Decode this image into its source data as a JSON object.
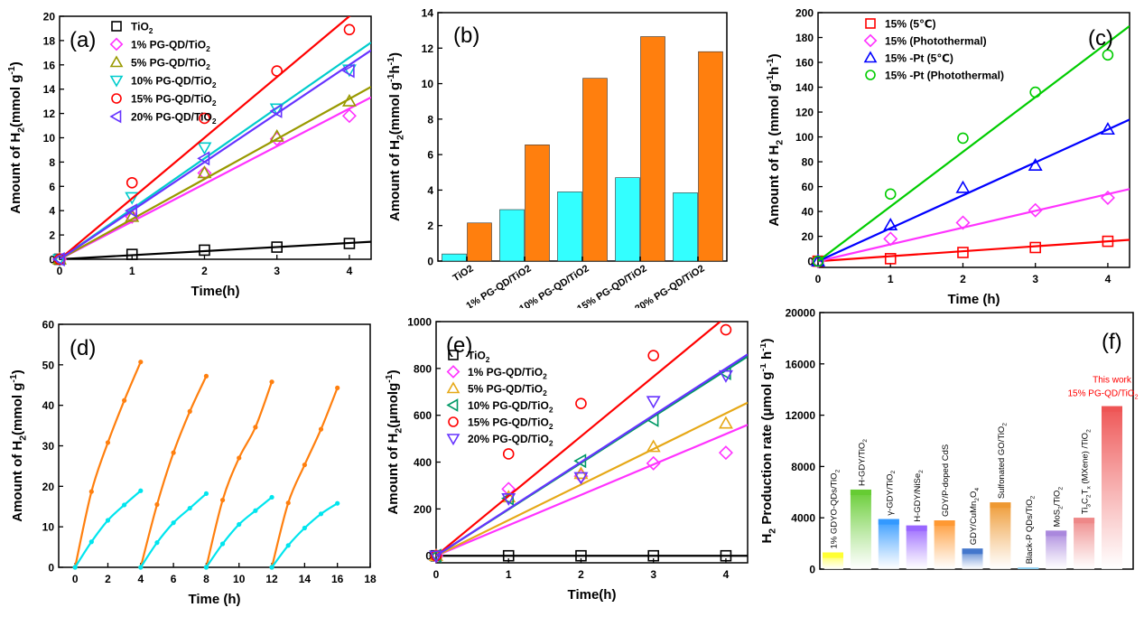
{
  "chart_data": [
    {
      "panel_label": "(a)",
      "type": "scatter",
      "xlabel": "Time(h)",
      "ylabel": "Amount of H2(mmol g-1)",
      "ylabel_parts": {
        "main": "Amount of H",
        "sub": "2",
        "mid": "(mmol g",
        "sup": "-1",
        "end": ")"
      },
      "xlim": [
        0,
        4.3
      ],
      "ylim": [
        0,
        20
      ],
      "xticks": [
        0,
        1,
        2,
        3,
        4
      ],
      "yticks": [
        0,
        2,
        4,
        6,
        8,
        10,
        12,
        14,
        16,
        18,
        20
      ],
      "legend_position": "top-left",
      "series": [
        {
          "name": "TiO2",
          "legend": {
            "main": "TiO",
            "sub": "2",
            "tail": ""
          },
          "marker": "square",
          "color": "#000000",
          "x": [
            0,
            1,
            2,
            3,
            4
          ],
          "y": [
            0,
            0.4,
            0.75,
            1.0,
            1.3
          ],
          "fit_slope": 0.335
        },
        {
          "name": "1% PG-QD/TiO2",
          "legend": {
            "main": "1% PG-QD/TiO",
            "sub": "2",
            "tail": ""
          },
          "marker": "diamond",
          "color": "#ff33ff",
          "x": [
            0,
            1,
            2,
            3,
            4
          ],
          "y": [
            0,
            3.5,
            7.1,
            9.9,
            11.8
          ],
          "fit_slope": 3.1
        },
        {
          "name": "5% PG-QD/TiO2",
          "legend": {
            "main": "5% PG-QD/TiO",
            "sub": "2",
            "tail": ""
          },
          "marker": "triangle-up",
          "color": "#999900",
          "x": [
            0,
            1,
            2,
            3,
            4
          ],
          "y": [
            0,
            3.5,
            7.1,
            10.1,
            13.0
          ],
          "fit_slope": 3.3
        },
        {
          "name": "10% PG-QD/TiO2",
          "legend": {
            "main": "10% PG-QD/TiO",
            "sub": "2",
            "tail": ""
          },
          "marker": "triangle-down",
          "color": "#00cccc",
          "x": [
            0,
            1,
            2,
            3,
            4
          ],
          "y": [
            0,
            5.1,
            9.2,
            12.4,
            15.6
          ],
          "fit_slope": 4.15
        },
        {
          "name": "15% PG-QD/TiO2",
          "legend": {
            "main": "15% PG-QD/TiO",
            "sub": "2",
            "tail": ""
          },
          "marker": "circle",
          "color": "#ff0000",
          "x": [
            0,
            1,
            2,
            3,
            4
          ],
          "y": [
            0,
            6.3,
            11.6,
            15.5,
            18.9
          ],
          "fit_slope": 5.0
        },
        {
          "name": "20% PG-QD/TiO2",
          "legend": {
            "main": "20% PG-QD/TiO",
            "sub": "2",
            "tail": ""
          },
          "marker": "triangle-left",
          "color": "#6633ff",
          "x": [
            0,
            1,
            2,
            3,
            4
          ],
          "y": [
            0,
            4.0,
            8.3,
            12.2,
            15.5
          ],
          "fit_slope": 4.0
        }
      ]
    },
    {
      "panel_label": "(b)",
      "type": "bar",
      "ylabel": "Amount of H2(mmol g-1h-1)",
      "ylabel_parts": {
        "main": "Amount of H",
        "sub": "2",
        "mid": "(mmol g",
        "sup": "-1",
        "mid2": "h",
        "sup2": "-1",
        "end": ")"
      },
      "ylim": [
        0,
        14
      ],
      "yticks": [
        0,
        2,
        4,
        6,
        8,
        10,
        12,
        14
      ],
      "categories": [
        "TiO2",
        "1% PG-QD/TiO2",
        "10% PG-QD/TiO2",
        "15% PG-QD/TiO2",
        "20% PG-QD/TiO2"
      ],
      "series": [
        {
          "color": "#33ffff",
          "values": [
            0.4,
            2.9,
            3.9,
            4.7,
            3.85
          ]
        },
        {
          "color": "#ff7f0e",
          "values": [
            2.15,
            6.55,
            10.3,
            12.65,
            11.8
          ]
        }
      ]
    },
    {
      "panel_label": "(c)",
      "type": "scatter",
      "xlabel": "Time (h)",
      "ylabel": "Amount of H2 (mmol g-1h-1)",
      "ylabel_parts": {
        "main": "Amount of H",
        "sub": "2",
        "mid": " (mmol g",
        "sup": "-1",
        "mid2": "h",
        "sup2": "-1",
        "end": ")"
      },
      "xlim": [
        0,
        4.3
      ],
      "ylim": [
        -5,
        200
      ],
      "xticks": [
        0,
        1,
        2,
        3,
        4
      ],
      "yticks": [
        0,
        20,
        40,
        60,
        80,
        100,
        120,
        140,
        160,
        180,
        200
      ],
      "legend_position": "top-left",
      "series": [
        {
          "name": "15% (5℃)",
          "legend": {
            "main": "15% (5℃)",
            "sub": "",
            "tail": ""
          },
          "marker": "square",
          "color": "#ff0000",
          "x": [
            0,
            1,
            2,
            3,
            4
          ],
          "y": [
            0,
            2,
            7,
            11,
            16
          ],
          "fit_slope": 4.0
        },
        {
          "name": "15% (Photothermal)",
          "legend": {
            "main": "15% (Photothermal)",
            "sub": "",
            "tail": ""
          },
          "marker": "diamond",
          "color": "#ff33ff",
          "x": [
            0,
            1,
            2,
            3,
            4
          ],
          "y": [
            0,
            18,
            31,
            41,
            51
          ],
          "fit_slope": 13.5
        },
        {
          "name": "15% -Pt (5℃)",
          "legend": {
            "main": "15% -Pt (5℃)",
            "sub": "",
            "tail": ""
          },
          "marker": "triangle-up",
          "color": "#0000ff",
          "x": [
            0,
            1,
            2,
            3,
            4
          ],
          "y": [
            0,
            29,
            59,
            77,
            106
          ],
          "fit_slope": 26.5
        },
        {
          "name": "15% -Pt (Photothermal)",
          "legend": {
            "main": "15% -Pt (Photothermal)",
            "sub": "",
            "tail": ""
          },
          "marker": "circle",
          "color": "#00cc00",
          "x": [
            0,
            1,
            2,
            3,
            4
          ],
          "y": [
            0,
            54,
            99,
            136,
            166
          ],
          "fit_slope": 44.0
        }
      ]
    },
    {
      "panel_label": "(d)",
      "type": "line",
      "xlabel": "Time (h)",
      "ylabel": "Amount of H2(mmol g-1)",
      "ylabel_parts": {
        "main": "Amount of H",
        "sub": "2",
        "mid": "(mmol g",
        "sup": "-1",
        "end": ")"
      },
      "xlim": [
        -1,
        18
      ],
      "ylim": [
        0,
        60
      ],
      "xticks": [
        0,
        2,
        4,
        6,
        8,
        10,
        12,
        14,
        16,
        18
      ],
      "yticks": [
        0,
        10,
        20,
        30,
        40,
        50,
        60
      ],
      "series": [
        {
          "color": "#ff7f0e",
          "cycles": [
            {
              "x": [
                0,
                1,
                2,
                3,
                4
              ],
              "y": [
                0,
                18.7,
                30.8,
                41.2,
                50.7
              ]
            },
            {
              "x": [
                4,
                5,
                6,
                7,
                8
              ],
              "y": [
                0,
                15.5,
                28.3,
                38.5,
                47.2
              ]
            },
            {
              "x": [
                8,
                9,
                10,
                11,
                12
              ],
              "y": [
                0,
                16.6,
                27.0,
                34.6,
                45.8
              ]
            },
            {
              "x": [
                12,
                13,
                14,
                15,
                16
              ],
              "y": [
                0,
                15.9,
                25.3,
                34.1,
                44.3
              ]
            }
          ]
        },
        {
          "color": "#00e5ee",
          "cycles": [
            {
              "x": [
                0,
                1,
                2,
                3,
                4
              ],
              "y": [
                0,
                6.3,
                11.6,
                15.4,
                18.9
              ]
            },
            {
              "x": [
                4,
                5,
                6,
                7,
                8
              ],
              "y": [
                0,
                6.1,
                11.0,
                14.6,
                18.2
              ]
            },
            {
              "x": [
                8,
                9,
                10,
                11,
                12
              ],
              "y": [
                0,
                5.8,
                10.6,
                14.0,
                17.3
              ]
            },
            {
              "x": [
                12,
                13,
                14,
                15,
                16
              ],
              "y": [
                0,
                5.4,
                9.7,
                13.2,
                15.8
              ]
            }
          ]
        }
      ]
    },
    {
      "panel_label": "(e)",
      "type": "scatter",
      "xlabel": "Time(h)",
      "ylabel": "Amount of H2(μmolg-1)",
      "ylabel_parts": {
        "main": "Amount of H",
        "sub": "2",
        "mid": "(μmolg",
        "sup": "-1",
        "end": ")"
      },
      "xlim": [
        0,
        4.3
      ],
      "ylim": [
        -30,
        1000
      ],
      "xticks": [
        0,
        1,
        2,
        3,
        4
      ],
      "yticks": [
        0,
        200,
        400,
        600,
        800,
        1000
      ],
      "legend_position": "top-left",
      "series": [
        {
          "name": "TiO2",
          "legend": {
            "main": "TiO",
            "sub": "2",
            "tail": ""
          },
          "marker": "square",
          "color": "#000000",
          "x": [
            0,
            1,
            2,
            3,
            4
          ],
          "y": [
            0,
            0,
            0,
            0,
            0
          ],
          "fit_slope": 0
        },
        {
          "name": "1% PG-QD/TiO2",
          "legend": {
            "main": "1% PG-QD/TiO",
            "sub": "2",
            "tail": ""
          },
          "marker": "diamond",
          "color": "#ff33ff",
          "x": [
            0,
            1,
            2,
            3,
            4
          ],
          "y": [
            0,
            285,
            340,
            395,
            440
          ],
          "fit_slope": 130
        },
        {
          "name": "5% PG-QD/TiO2",
          "legend": {
            "main": "5% PG-QD/TiO",
            "sub": "2",
            "tail": ""
          },
          "marker": "triangle-up",
          "color": "#e6a817",
          "x": [
            0,
            1,
            2,
            3,
            4
          ],
          "y": [
            0,
            250,
            350,
            465,
            565
          ],
          "fit_slope": 152
        },
        {
          "name": "10% PG-QD/TiO2",
          "legend": {
            "main": "10% PG-QD/TiO",
            "sub": "2",
            "tail": ""
          },
          "marker": "triangle-left",
          "color": "#009966",
          "x": [
            0,
            1,
            2,
            3,
            4
          ],
          "y": [
            0,
            245,
            405,
            580,
            780
          ],
          "fit_slope": 198
        },
        {
          "name": "15% PG-QD/TiO2",
          "legend": {
            "main": "15% PG-QD/TiO",
            "sub": "2",
            "tail": ""
          },
          "marker": "circle",
          "color": "#ff0000",
          "x": [
            0,
            1,
            2,
            3,
            4
          ],
          "y": [
            0,
            435,
            650,
            855,
            965
          ],
          "fit_slope": 255
        },
        {
          "name": "20% PG-QD/TiO2",
          "legend": {
            "main": "20% PG-QD/TiO",
            "sub": "2",
            "tail": ""
          },
          "marker": "triangle-down",
          "color": "#6633ff",
          "x": [
            0,
            1,
            2,
            3,
            4
          ],
          "y": [
            0,
            245,
            335,
            660,
            770
          ],
          "fit_slope": 200
        }
      ]
    },
    {
      "panel_label": "(f)",
      "type": "bar",
      "ylabel": "H2 Production rate (μmol g-1 h-1)",
      "ylabel_parts": {
        "main": "H",
        "sub": "2",
        "mid": " Production rate (μmol g",
        "sup": "-1",
        "mid2": " h",
        "sup2": "-1",
        "end": ")"
      },
      "ylim": [
        0,
        20000
      ],
      "yticks": [
        0,
        4000,
        8000,
        12000,
        16000,
        20000
      ],
      "annotation": {
        "line1": "This work",
        "line2_main": "15% PG-QD/TiO",
        "line2_sub": "2",
        "color": "#ff0000"
      },
      "categories": [
        "1% GDYO-QDs/TiO2",
        "H-GDY/TiO2",
        "γ-GDY/TiO2",
        "H-GDY/NiSe2",
        "GDY/P-doped CdS",
        "GDY/CuMn2O4",
        "Sulfonated GO/TiO2",
        "Black-P QDs/TiO2",
        "MoS2/TiO2",
        "Ti3C2Tx (MXene)/TiO2",
        "15% PG-QD/TiO2"
      ],
      "category_labels": [
        {
          "main": "1% GDYO-QDs/TiO",
          "sub": "2"
        },
        {
          "main": "H-GDY/TiO",
          "sub": "2"
        },
        {
          "main": "γ-GDY/TiO",
          "sub": "2"
        },
        {
          "main": "H-GDY/NiSe",
          "sub": "2"
        },
        {
          "main": "GDY/P-doped CdS",
          "sub": ""
        },
        {
          "main": "GDY/CuMn",
          "sub": "2",
          "main2": "O",
          "sub2": "4"
        },
        {
          "main": "Sulfonated GO/TiO",
          "sub": "2"
        },
        {
          "main": "Black-P QDs/TiO",
          "sub": "2"
        },
        {
          "main": "MoS",
          "sub": "2",
          "main2": "/TiO",
          "sub2": "2"
        },
        {
          "main": "Ti",
          "sub": "3",
          "main2": "C",
          "sub2": "2",
          "main3": "T",
          "sub3": "x",
          "main4": " (MXene) /TiO",
          "sub4": "2"
        },
        {
          "main": "",
          "sub": ""
        }
      ],
      "values": [
        1300,
        6200,
        3900,
        3400,
        3800,
        1600,
        5200,
        120,
        3000,
        4000,
        12700
      ],
      "colors": [
        "#ffff33",
        "#66cc33",
        "#3399ff",
        "#9966ff",
        "#ff9933",
        "#4477cc",
        "#ee9933",
        "#88ccee",
        "#aa88dd",
        "#ee8888",
        "#ee5555"
      ]
    }
  ]
}
